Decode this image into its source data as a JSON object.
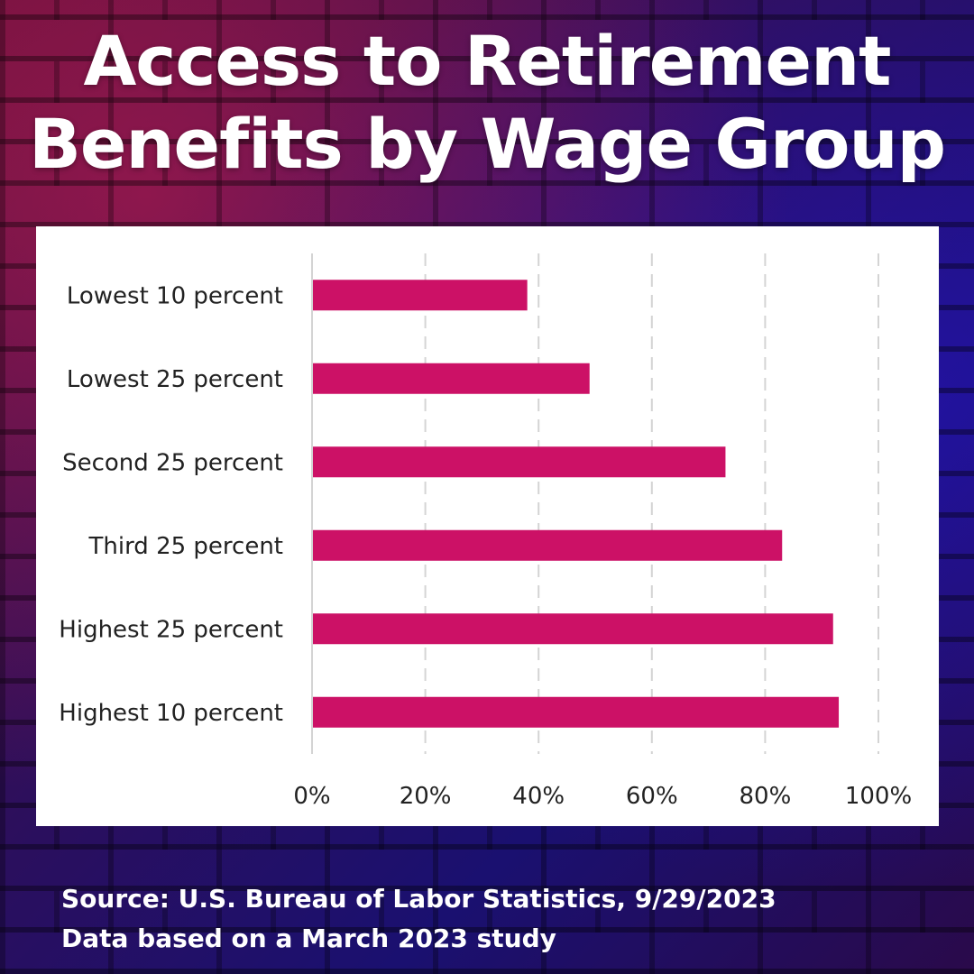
{
  "title": {
    "line1": "Access to Retirement",
    "line2": "Benefits by Wage Group"
  },
  "footer": {
    "source": "Source: U.S. Bureau of Labor Statistics, 9/29/2023",
    "note": "Data based on a March 2023 study"
  },
  "colors": {
    "bar": "#cc1166",
    "gridline": "#d4d4d4",
    "panel": "#ffffff"
  },
  "chart_data": {
    "type": "bar",
    "orientation": "horizontal",
    "categories": [
      "Lowest 10 percent",
      "Lowest 25 percent",
      "Second 25 percent",
      "Third 25 percent",
      "Highest 25 percent",
      "Highest 10 percent"
    ],
    "values": [
      38,
      49,
      73,
      83,
      92,
      93
    ],
    "value_unit": "%",
    "xlim": [
      0,
      100
    ],
    "xticks": [
      "0%",
      "20%",
      "40%",
      "60%",
      "80%",
      "100%"
    ],
    "xtick_values": [
      0,
      20,
      40,
      60,
      80,
      100
    ],
    "grid": "vertical dashed",
    "legend": "none"
  }
}
